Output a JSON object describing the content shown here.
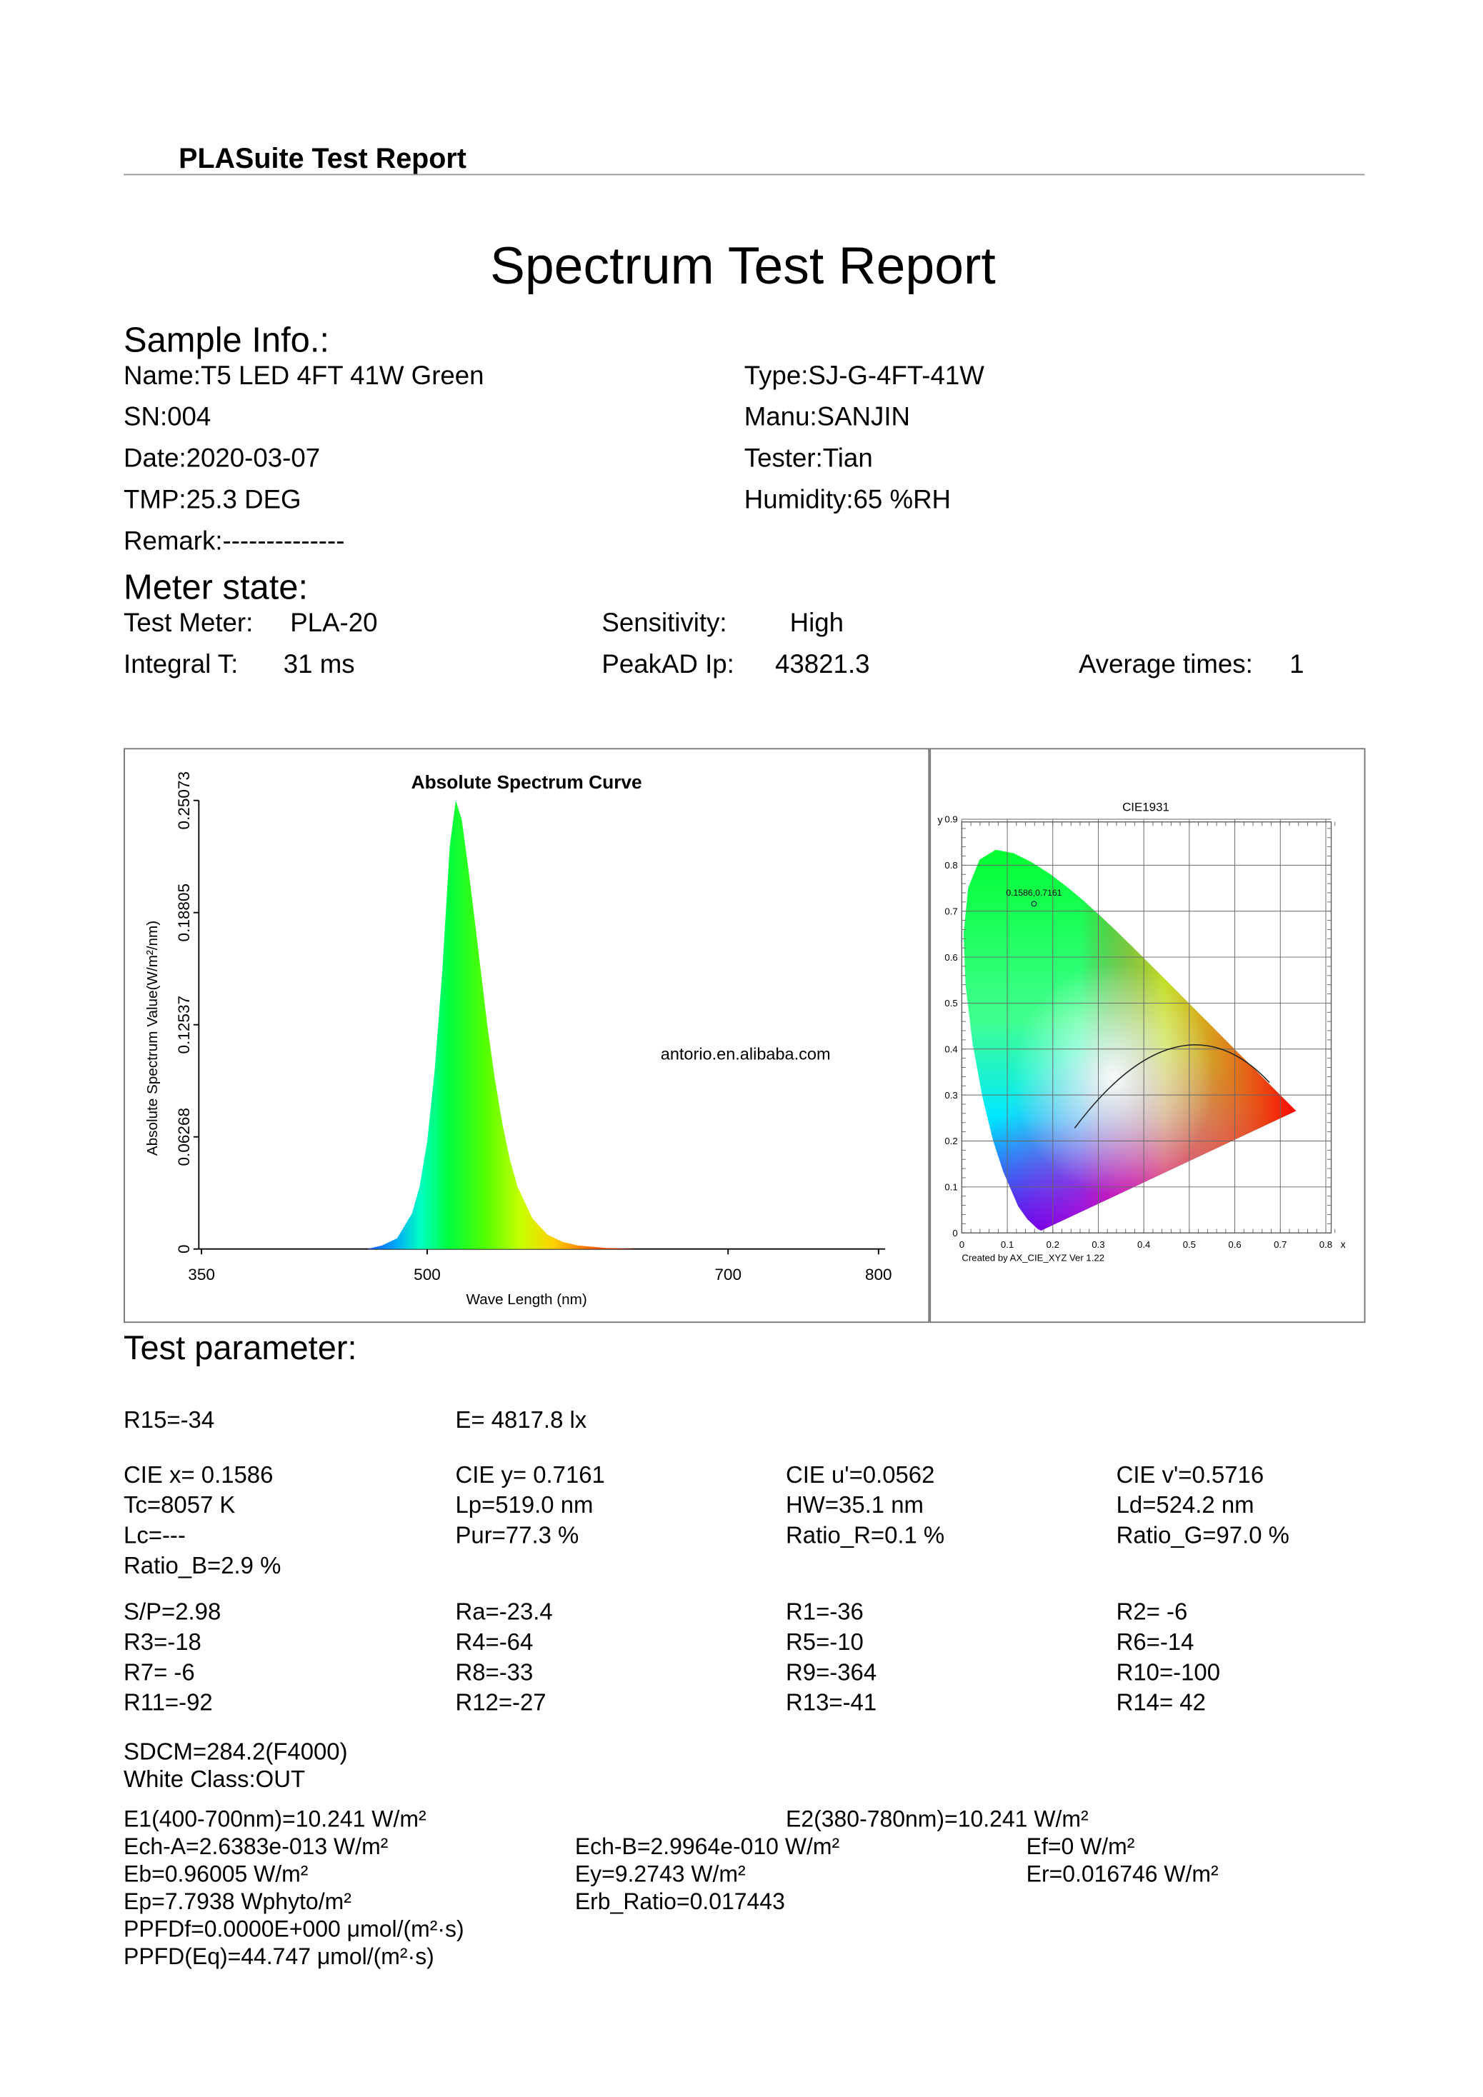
{
  "header": {
    "title": "PLASuite Test Report"
  },
  "title": "Spectrum Test Report",
  "sample_info": {
    "heading": "Sample Info.:",
    "left": [
      "Name:T5 LED 4FT 41W Green",
      "SN:004",
      "Date:2020-03-07",
      "TMP:25.3 DEG",
      "Remark:--------------"
    ],
    "right": [
      "Type:SJ-G-4FT-41W",
      "Manu:SANJIN",
      "Tester:Tian",
      "Humidity:65 %RH"
    ]
  },
  "meter_state": {
    "heading": "Meter state:",
    "rows": [
      [
        {
          "label": "Test Meter:",
          "value": "PLA-20"
        },
        {
          "label": "Sensitivity:",
          "value": "High"
        }
      ],
      [
        {
          "label": "Integral T:",
          "value": "31 ms"
        },
        {
          "label": "PeakAD Ip:",
          "value": "43821.3"
        },
        {
          "label": "Average times:",
          "value": "1"
        }
      ]
    ]
  },
  "chart_data": [
    {
      "type": "area",
      "title": "Absolute Spectrum Curve",
      "x_label": "Wave Length (nm)",
      "y_label": "Absolute Spectrum Value(W/m²/nm)",
      "x": [
        350,
        460,
        470,
        480,
        490,
        495,
        500,
        505,
        510,
        515,
        519,
        523,
        527,
        530,
        535,
        540,
        545,
        550,
        555,
        560,
        570,
        580,
        590,
        600,
        620,
        640,
        800
      ],
      "values": [
        0,
        0,
        0.002,
        0.006,
        0.02,
        0.035,
        0.06,
        0.1,
        0.155,
        0.225,
        0.25073,
        0.24,
        0.215,
        0.195,
        0.16,
        0.125,
        0.095,
        0.07,
        0.05,
        0.035,
        0.017,
        0.008,
        0.004,
        0.002,
        0.0005,
        0,
        0
      ],
      "xlim": [
        350,
        800
      ],
      "xticks": [
        350,
        500,
        700,
        800
      ],
      "ylim": [
        0,
        0.25073
      ],
      "yticks": [
        0,
        0.06268,
        0.12537,
        0.18805,
        0.25073
      ],
      "watermark": "antorio.en.alibaba.com"
    },
    {
      "type": "scatter",
      "title": "CIE1931",
      "x_label": "x",
      "y_label": "y",
      "x": [
        0.1586
      ],
      "values": [
        0.7161
      ],
      "value_labels": [
        "0.1586,0.7161"
      ],
      "xlim": [
        0,
        0.8
      ],
      "xticks": [
        0,
        0.1,
        0.2,
        0.3,
        0.4,
        0.5,
        0.6,
        0.7,
        0.8
      ],
      "ylim": [
        0,
        0.9
      ],
      "yticks": [
        0,
        0.1,
        0.2,
        0.3,
        0.4,
        0.5,
        0.6,
        0.7,
        0.8,
        0.9
      ],
      "grid": true,
      "note": "Created by AX_CIE_XYZ Ver 1.22"
    }
  ],
  "test_parameter": {
    "heading": "Test parameter:",
    "groups": [
      [
        [
          "R15=-34",
          "E=  4817.8 lx"
        ]
      ],
      [
        [
          "CIE x= 0.1586",
          "CIE y= 0.7161",
          "CIE u'=0.0562",
          "CIE v'=0.5716"
        ],
        [
          "Tc=8057 K",
          "Lp=519.0 nm",
          "HW=35.1 nm",
          "Ld=524.2 nm"
        ],
        [
          "Lc=---",
          "Pur=77.3 %",
          "Ratio_R=0.1 %",
          "Ratio_G=97.0 %"
        ],
        [
          "Ratio_B=2.9 %"
        ]
      ],
      [
        [
          "S/P=2.98",
          "Ra=-23.4",
          "R1=-36",
          "R2= -6"
        ],
        [
          "R3=-18",
          "R4=-64",
          "R5=-10",
          "R6=-14"
        ],
        [
          "R7= -6",
          "R8=-33",
          "R9=-364",
          "R10=-100"
        ],
        [
          "R11=-92",
          "R12=-27",
          "R13=-41",
          "R14= 42"
        ]
      ],
      [
        [
          "SDCM=284.2(F4000)"
        ],
        [
          "White Class:OUT"
        ]
      ],
      [
        [
          "E1(400-700nm)=10.241 W/m²",
          "E2(380-780nm)=10.241 W/m²"
        ],
        [
          "Ech-A=2.6383e-013 W/m²",
          "Ech-B=2.9964e-010 W/m²",
          "Ef=0 W/m²"
        ],
        [
          "Eb=0.96005 W/m²",
          "Ey=9.2743 W/m²",
          "Er=0.016746 W/m²"
        ],
        [
          "Ep=7.7938 Wphyto/m²",
          "Erb_Ratio=0.017443"
        ],
        [
          "PPFDf=0.0000E+000 μmol/(m²·s)"
        ],
        [
          "PPFD(Eq)=44.747 μmol/(m²·s)"
        ]
      ]
    ]
  }
}
